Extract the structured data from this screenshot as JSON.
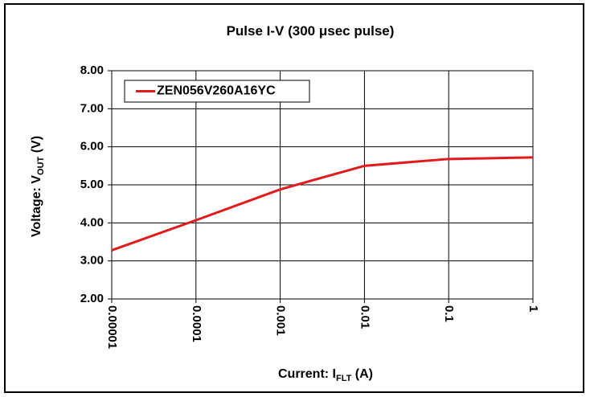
{
  "chart_data": {
    "type": "line",
    "title": "Pulse I-V (300 μsec pulse)",
    "xlabel": {
      "main": "Current: I",
      "sub": "FLT",
      "end": " (A)"
    },
    "ylabel": {
      "main": "Voltage: V",
      "sub": "OUT",
      "end": " (V)"
    },
    "x": [
      1e-05,
      0.0001,
      0.001,
      0.01,
      0.1,
      1
    ],
    "series": [
      {
        "name": "ZEN056V260A16YC",
        "color": "#e31a1c",
        "values": [
          3.28,
          4.07,
          4.88,
          5.5,
          5.68,
          5.72
        ]
      }
    ],
    "xscale": "log",
    "xlim": [
      1e-05,
      1
    ],
    "xticks": [
      1e-05,
      0.0001,
      0.001,
      0.01,
      0.1,
      1
    ],
    "ylim": [
      2,
      8
    ],
    "yticks": [
      {
        "value": 2,
        "label": "2.00"
      },
      {
        "value": 3,
        "label": "3.00"
      },
      {
        "value": 4,
        "label": "4.00"
      },
      {
        "value": 5,
        "label": "5.00"
      },
      {
        "value": 6,
        "label": "6.00"
      },
      {
        "value": 7,
        "label": "7.00"
      },
      {
        "value": 8,
        "label": "8.00"
      }
    ],
    "grid": true,
    "legend": "upper left"
  }
}
